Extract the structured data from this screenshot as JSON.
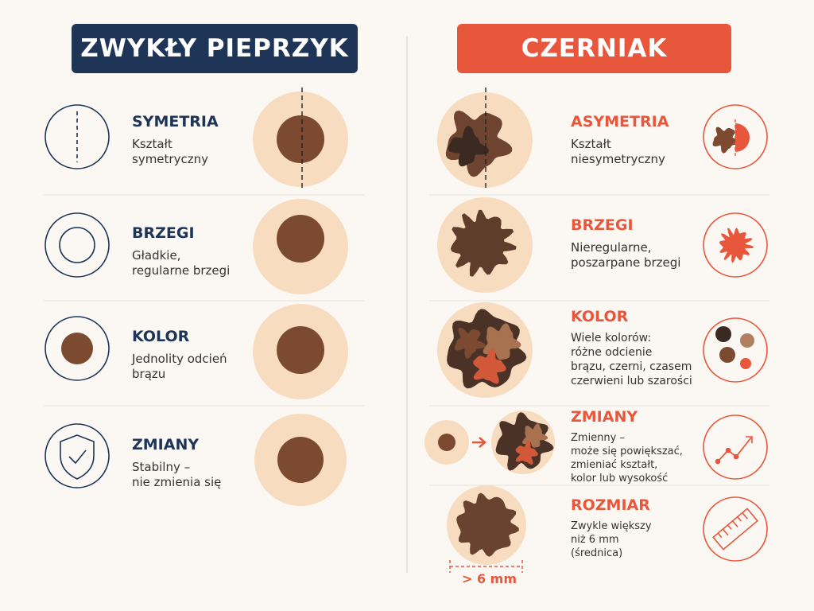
{
  "left": {
    "title": "ZWYKŁY PIEPRZYK",
    "rows": [
      {
        "title": "SYMETRIA",
        "lines": [
          "Kształt",
          "symetryczny"
        ]
      },
      {
        "title": "BRZEGI",
        "lines": [
          "Gładkie,",
          "regularne brzegi"
        ]
      },
      {
        "title": "KOLOR",
        "lines": [
          "Jednolity odcień",
          "brązu"
        ]
      },
      {
        "title": "ZMIANY",
        "lines": [
          "Stabilny –",
          "nie zmienia się"
        ]
      }
    ]
  },
  "right": {
    "title": "CZERNIAK",
    "rows": [
      {
        "title": "ASYMETRIA",
        "lines": [
          "Kształt",
          "niesymetryczny"
        ]
      },
      {
        "title": "BRZEGI",
        "lines": [
          "Nieregularne,",
          "poszarpane brzegi"
        ]
      },
      {
        "title": "KOLOR",
        "lines": [
          "Wiele kolorów:",
          "różne odcienie",
          "brązu, czerni, czasem",
          "czerwieni lub szarości"
        ]
      },
      {
        "title": "ZMIANY",
        "lines": [
          "Zmienny –",
          "może się powiększać,",
          "zmieniać kształt,",
          "kolor lub wysokość"
        ]
      },
      {
        "title": "ROZMIAR",
        "lines": [
          "Zwykle większy",
          "niż 6 mm",
          "(średnica)"
        ]
      }
    ],
    "size_label": "> 6 mm"
  }
}
